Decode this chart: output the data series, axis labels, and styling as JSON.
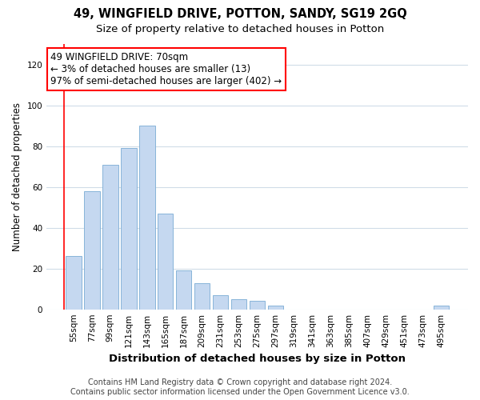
{
  "title": "49, WINGFIELD DRIVE, POTTON, SANDY, SG19 2GQ",
  "subtitle": "Size of property relative to detached houses in Potton",
  "xlabel": "Distribution of detached houses by size in Potton",
  "ylabel": "Number of detached properties",
  "categories": [
    "55sqm",
    "77sqm",
    "99sqm",
    "121sqm",
    "143sqm",
    "165sqm",
    "187sqm",
    "209sqm",
    "231sqm",
    "253sqm",
    "275sqm",
    "297sqm",
    "319sqm",
    "341sqm",
    "363sqm",
    "385sqm",
    "407sqm",
    "429sqm",
    "451sqm",
    "473sqm",
    "495sqm"
  ],
  "values": [
    26,
    58,
    71,
    79,
    90,
    47,
    19,
    13,
    7,
    5,
    4,
    2,
    0,
    0,
    0,
    0,
    0,
    0,
    0,
    0,
    2
  ],
  "bar_color": "#c5d8f0",
  "bar_edgecolor": "#7aabd4",
  "annotation_line1": "49 WINGFIELD DRIVE: 70sqm",
  "annotation_line2": "← 3% of detached houses are smaller (13)",
  "annotation_line3": "97% of semi-detached houses are larger (402) →",
  "annotation_box_facecolor": "white",
  "annotation_box_edgecolor": "red",
  "ylim": [
    0,
    130
  ],
  "yticks": [
    0,
    20,
    40,
    60,
    80,
    100,
    120
  ],
  "footer_line1": "Contains HM Land Registry data © Crown copyright and database right 2024.",
  "footer_line2": "Contains public sector information licensed under the Open Government Licence v3.0.",
  "bg_color": "#ffffff",
  "plot_bg_color": "#ffffff",
  "grid_color": "#d0dce8",
  "title_fontsize": 10.5,
  "subtitle_fontsize": 9.5,
  "xlabel_fontsize": 9.5,
  "ylabel_fontsize": 8.5,
  "tick_fontsize": 7.5,
  "annotation_fontsize": 8.5,
  "footer_fontsize": 7
}
